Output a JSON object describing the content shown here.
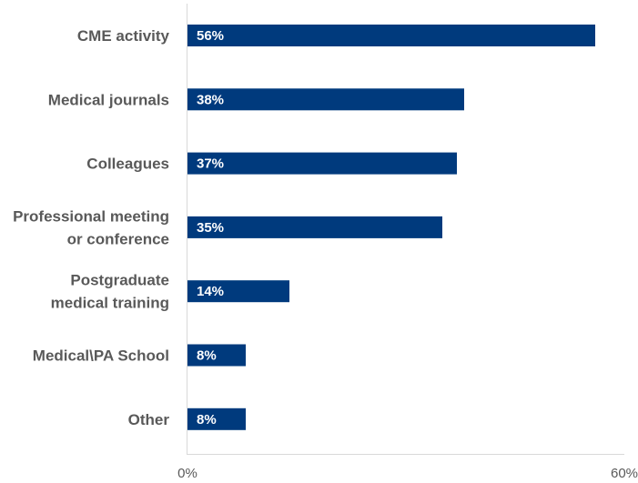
{
  "chart_data": {
    "type": "bar",
    "orientation": "horizontal",
    "categories": [
      "CME activity",
      "Medical journals",
      "Colleagues",
      "Professional meeting or conference",
      "Postgraduate medical training",
      "Medical\\PA School",
      "Other"
    ],
    "category_lines": [
      [
        "CME activity"
      ],
      [
        "Medical journals"
      ],
      [
        "Colleagues"
      ],
      [
        "Professional meeting",
        "or conference"
      ],
      [
        "Postgraduate",
        "medical training"
      ],
      [
        "Medical\\PA School"
      ],
      [
        "Other"
      ]
    ],
    "values": [
      56,
      38,
      37,
      35,
      14,
      8,
      8
    ],
    "value_labels": [
      "56%",
      "38%",
      "37%",
      "35%",
      "14%",
      "8%",
      "8%"
    ],
    "xlim": [
      0,
      60
    ],
    "x_ticks": [
      "0%",
      "60%"
    ],
    "title": "",
    "xlabel": "",
    "ylabel": "",
    "grid": false,
    "bar_color": "#003a7d",
    "axis_color": "#d9d9d9",
    "label_color": "#595959"
  }
}
